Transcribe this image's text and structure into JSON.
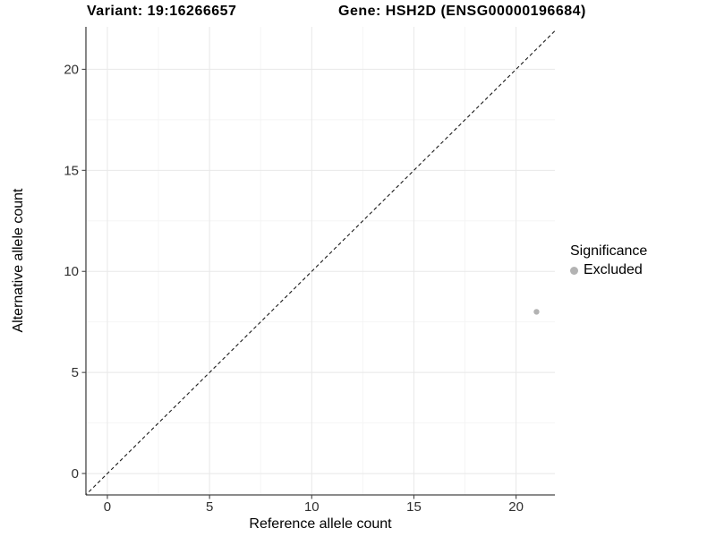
{
  "figure": {
    "title_left": "Variant: 19:16266657",
    "title_right": "Gene: HSH2D (ENSG00000196684)"
  },
  "legend": {
    "title": "Significance",
    "items": [
      {
        "label": "Excluded",
        "color": "#b3b3b3"
      }
    ]
  },
  "chart_data": {
    "type": "scatter",
    "title": "Variant: 19:16266657 / Gene: HSH2D (ENSG00000196684)",
    "xlabel": "Reference allele count",
    "ylabel": "Alternative allele count",
    "xlim": [
      -1.05,
      21.9
    ],
    "ylim": [
      -1.06,
      22.1
    ],
    "x_ticks": [
      0,
      5,
      10,
      15,
      20
    ],
    "y_ticks": [
      0,
      5,
      10,
      15,
      20
    ],
    "grid": true,
    "grid_major_color": "#e8e8e8",
    "grid_minor_color": "#f4f4f4",
    "axis_color": "#464646",
    "legend_position": "right",
    "series": [
      {
        "name": "Excluded",
        "color": "#b3b3b3",
        "points": [
          {
            "x": 21,
            "y": 8
          }
        ]
      }
    ],
    "reference_line": {
      "slope": 1,
      "intercept": 0,
      "style": "dashed",
      "color": "#1a1a1a"
    }
  }
}
